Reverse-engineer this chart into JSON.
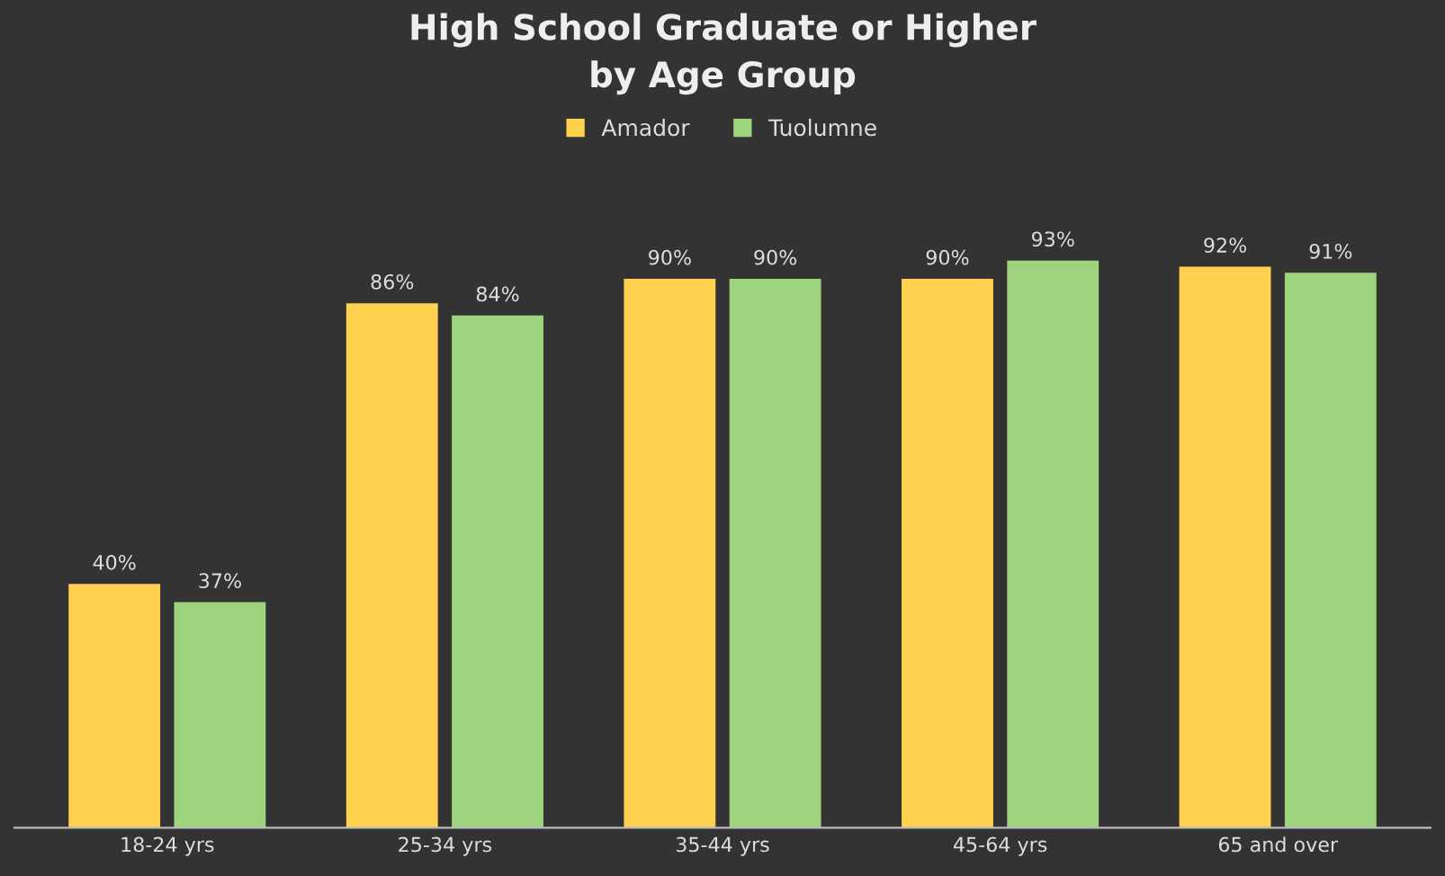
{
  "chart_data": {
    "type": "bar",
    "title": "High School Graduate or Higher\nby Age Group",
    "categories": [
      "18-24 yrs",
      "25-34 yrs",
      "35-44 yrs",
      "45-64 yrs",
      "65 and over"
    ],
    "series": [
      {
        "name": "Amador",
        "color": "#ffd14f",
        "values": [
          40,
          86,
          90,
          90,
          92
        ],
        "value_labels": [
          "40%",
          "86%",
          "90%",
          "90%",
          "92%"
        ]
      },
      {
        "name": "Tuolumne",
        "color": "#9fd47f",
        "values": [
          37,
          84,
          90,
          93,
          91
        ],
        "value_labels": [
          "37%",
          "84%",
          "90%",
          "93%",
          "91%"
        ]
      }
    ],
    "tick_labels": "x",
    "grid": false,
    "legend": "top"
  }
}
